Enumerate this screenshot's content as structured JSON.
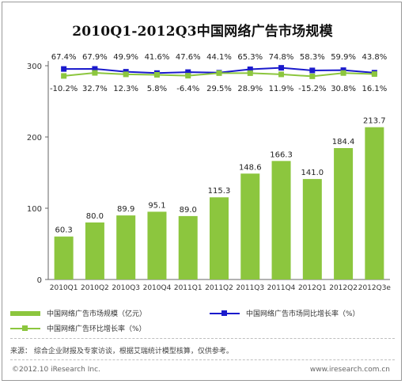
{
  "chart_data": {
    "type": "bar",
    "title": "2010Q1-2012Q3中国网络广告市场规模",
    "categories": [
      "2010Q1",
      "2010Q2",
      "2010Q3",
      "2010Q4",
      "2011Q1",
      "2011Q2",
      "2011Q3",
      "2011Q4",
      "2012Q1",
      "2012Q2",
      "2012Q3e"
    ],
    "ylim": [
      0,
      300
    ],
    "yticks": [
      0,
      100,
      200,
      300
    ],
    "series": [
      {
        "name": "中国网络广告市场规模（亿元）",
        "kind": "bar",
        "color": "#8cc63e",
        "values": [
          60.3,
          80.0,
          89.9,
          95.1,
          89.0,
          115.3,
          148.6,
          166.3,
          141.0,
          184.4,
          213.7
        ],
        "labels": [
          "60.3",
          "80.0",
          "89.9",
          "95.1",
          "89.0",
          "115.3",
          "148.6",
          "166.3",
          "141.0",
          "184.4",
          "213.7"
        ]
      },
      {
        "name": "中国网络广告市场同比增长率（%）",
        "kind": "line",
        "color": "#1a1acc",
        "values": [
          67.4,
          67.9,
          49.9,
          41.6,
          47.6,
          44.1,
          65.3,
          74.8,
          58.3,
          59.9,
          43.8
        ],
        "labels": [
          "67.4%",
          "67.9%",
          "49.9%",
          "41.6%",
          "47.6%",
          "44.1%",
          "65.3%",
          "74.8%",
          "58.3%",
          "59.9%",
          "43.8%"
        ]
      },
      {
        "name": "中国网络广告环比增长率（%）",
        "kind": "line",
        "color": "#8cc63e",
        "values": [
          -10.2,
          32.7,
          12.3,
          5.8,
          -6.4,
          29.5,
          28.9,
          11.9,
          -15.2,
          30.8,
          16.1
        ],
        "labels": [
          "-10.2%",
          "32.7%",
          "12.3%",
          "5.8%",
          "-6.4%",
          "29.5%",
          "28.9%",
          "11.9%",
          "-15.2%",
          "30.8%",
          "16.1%"
        ]
      }
    ],
    "legend": "bottom",
    "grid": false
  },
  "source_text": "来源：   综合企业财报及专家访谈，根据艾瑞统计模型核算，仅供参考。",
  "footer_left": "©2012.10 iResearch Inc.",
  "footer_right": "www.iresearch.com.cn"
}
